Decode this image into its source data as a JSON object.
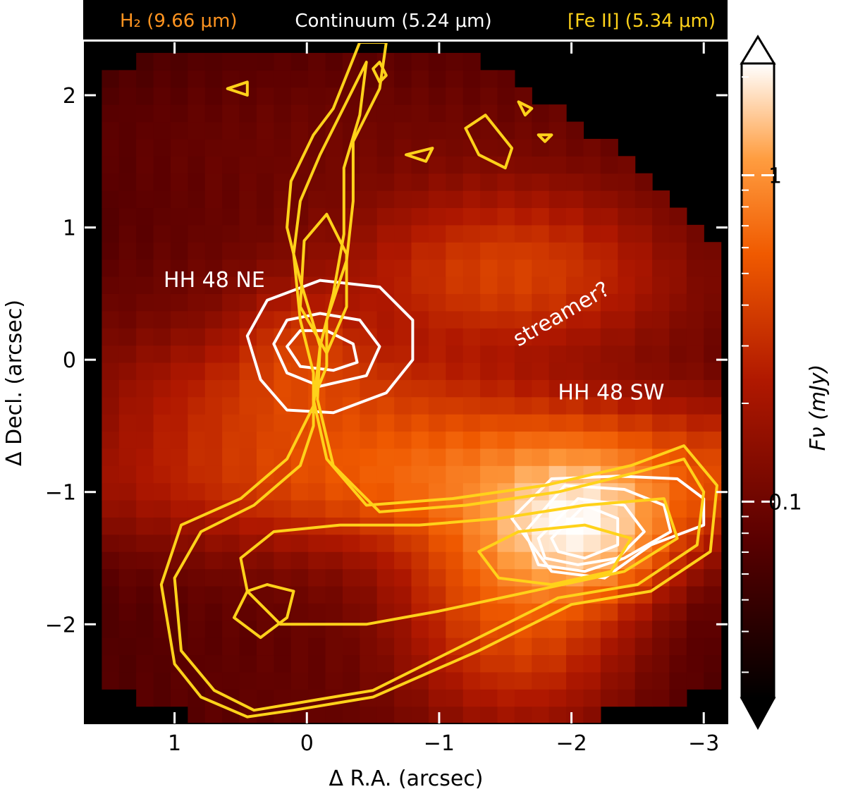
{
  "chart_data": {
    "type": "heatmap",
    "title": "",
    "header": {
      "items": [
        {
          "text": "H₂ (9.66 μm)",
          "color": "#ff9420"
        },
        {
          "text": "Continuum (5.24 μm)",
          "color": "#ffffff"
        },
        {
          "text": "[Fe II] (5.34 μm)",
          "color": "#ffd21a"
        }
      ],
      "background": "#000000"
    },
    "xlabel": "Δ R.A. (arcsec)",
    "ylabel": "Δ Decl. (arcsec)",
    "xlim": [
      1.68,
      -3.18
    ],
    "ylim": [
      -2.75,
      2.4
    ],
    "xticks": [
      1,
      0,
      -1,
      -2,
      -3
    ],
    "xtick_labels": [
      "1",
      "0",
      "−1",
      "−2",
      "−3"
    ],
    "yticks": [
      -2,
      -1,
      0,
      1,
      2
    ],
    "ytick_labels": [
      "−2",
      "−1",
      "0",
      "1",
      "2"
    ],
    "colorbar": {
      "label": "Fν (mJy)",
      "scale": "log",
      "range": [
        0.025,
        2.2
      ],
      "ticks": [
        0.1,
        1
      ],
      "tick_labels": [
        "0.1",
        "1"
      ],
      "colormap": "gist_heat",
      "extend": "both"
    },
    "annotations": [
      {
        "text": "HH 48 NE",
        "x": 0.7,
        "y": 0.55,
        "color": "#ffffff",
        "rotation": 0
      },
      {
        "text": "HH 48 SW",
        "x": -2.3,
        "y": -0.3,
        "color": "#ffffff",
        "rotation": 0
      },
      {
        "text": "streamer?",
        "x": -1.95,
        "y": 0.3,
        "color": "#ffffff",
        "rotation": -30
      }
    ],
    "image": {
      "pixel_size_arcsec": 0.13,
      "footprint_boundary": [
        [
          1.58,
          -2.25
        ],
        [
          1.6,
          2.1
        ],
        [
          1.25,
          2.3
        ],
        [
          0.7,
          2.35
        ],
        [
          -0.2,
          2.35
        ],
        [
          -0.8,
          2.3
        ],
        [
          -1.35,
          2.25
        ],
        [
          -1.75,
          2.0
        ],
        [
          -2.4,
          1.55
        ],
        [
          -2.8,
          1.1
        ],
        [
          -3.15,
          0.75
        ],
        [
          -3.18,
          -2.45
        ],
        [
          -2.8,
          -2.6
        ],
        [
          -1.8,
          -2.75
        ],
        [
          -0.6,
          -2.75
        ],
        [
          0.7,
          -2.75
        ],
        [
          1.2,
          -2.6
        ],
        [
          1.58,
          -2.45
        ]
      ],
      "emission_components": [
        {
          "name": "continuum-background",
          "amplitude": 0.09,
          "x": -0.8,
          "y": -0.2,
          "sigma_x": 2.4,
          "sigma_y": 2.4
        },
        {
          "name": "disk-lane",
          "amplitude": 0.55,
          "x": -1.6,
          "y": -0.85,
          "sigma_x": 1.6,
          "sigma_y": 0.32
        },
        {
          "name": "disk-ne-lane",
          "amplitude": 0.22,
          "x": 0.0,
          "y": -0.3,
          "sigma_x": 0.9,
          "sigma_y": 0.3
        },
        {
          "name": "hh48-sw-source",
          "amplitude": 1.5,
          "x": -2.05,
          "y": -1.25,
          "sigma_x": 0.38,
          "sigma_y": 0.3
        },
        {
          "name": "sw-extended",
          "amplitude": 0.5,
          "x": -1.6,
          "y": -1.7,
          "sigma_x": 0.5,
          "sigma_y": 0.55
        },
        {
          "name": "streamer",
          "amplitude": 0.3,
          "x": -1.55,
          "y": 0.7,
          "sigma_x": 0.7,
          "sigma_y": 0.35
        },
        {
          "name": "ne-knot",
          "amplitude": 0.18,
          "x": 0.05,
          "y": 0.1,
          "sigma_x": 0.3,
          "sigma_y": 0.3
        }
      ]
    },
    "contours": [
      {
        "name": "Continuum (5.24 μm)",
        "color": "#ffffff",
        "levels": [
          [
            [
              0.45,
              0.18
            ],
            [
              0.3,
              0.45
            ],
            [
              -0.1,
              0.6
            ],
            [
              -0.55,
              0.55
            ],
            [
              -0.8,
              0.3
            ],
            [
              -0.8,
              0.0
            ],
            [
              -0.6,
              -0.25
            ],
            [
              -0.2,
              -0.4
            ],
            [
              0.15,
              -0.38
            ],
            [
              0.35,
              -0.15
            ],
            [
              0.45,
              0.18
            ]
          ],
          [
            [
              0.25,
              0.12
            ],
            [
              0.15,
              0.3
            ],
            [
              -0.1,
              0.35
            ],
            [
              -0.4,
              0.3
            ],
            [
              -0.55,
              0.1
            ],
            [
              -0.45,
              -0.12
            ],
            [
              -0.1,
              -0.2
            ],
            [
              0.15,
              -0.1
            ],
            [
              0.25,
              0.12
            ]
          ],
          [
            [
              0.15,
              0.1
            ],
            [
              0.05,
              0.22
            ],
            [
              -0.15,
              0.22
            ],
            [
              -0.35,
              0.12
            ],
            [
              -0.38,
              -0.02
            ],
            [
              -0.2,
              -0.08
            ],
            [
              0.05,
              -0.05
            ],
            [
              0.15,
              0.1
            ]
          ],
          [
            [
              -1.55,
              -1.2
            ],
            [
              -1.85,
              -0.9
            ],
            [
              -2.35,
              -0.88
            ],
            [
              -2.8,
              -0.9
            ],
            [
              -3.0,
              -1.05
            ],
            [
              -3.0,
              -1.25
            ],
            [
              -2.6,
              -1.4
            ],
            [
              -2.25,
              -1.65
            ],
            [
              -1.85,
              -1.6
            ],
            [
              -1.55,
              -1.2
            ]
          ],
          [
            [
              -1.65,
              -1.3
            ],
            [
              -1.95,
              -0.95
            ],
            [
              -2.4,
              -0.98
            ],
            [
              -2.7,
              -1.1
            ],
            [
              -2.75,
              -1.3
            ],
            [
              -2.4,
              -1.5
            ],
            [
              -2.1,
              -1.6
            ],
            [
              -1.75,
              -1.55
            ],
            [
              -1.65,
              -1.3
            ]
          ],
          [
            [
              -1.75,
              -1.35
            ],
            [
              -2.05,
              -1.05
            ],
            [
              -2.4,
              -1.1
            ],
            [
              -2.55,
              -1.3
            ],
            [
              -2.35,
              -1.5
            ],
            [
              -2.05,
              -1.55
            ],
            [
              -1.8,
              -1.5
            ],
            [
              -1.75,
              -1.35
            ]
          ],
          [
            [
              -1.85,
              -1.35
            ],
            [
              -2.1,
              -1.1
            ],
            [
              -2.35,
              -1.2
            ],
            [
              -2.35,
              -1.4
            ],
            [
              -2.1,
              -1.5
            ],
            [
              -1.9,
              -1.45
            ],
            [
              -1.85,
              -1.35
            ]
          ]
        ]
      },
      {
        "name": "[Fe II] (5.34 μm)",
        "color": "#ffd21a",
        "levels": [
          [
            [
              0.8,
              -2.55
            ],
            [
              1.0,
              -2.3
            ],
            [
              1.1,
              -1.7
            ],
            [
              0.95,
              -1.25
            ],
            [
              0.5,
              -1.05
            ],
            [
              0.15,
              -0.75
            ],
            [
              -0.05,
              -0.35
            ],
            [
              -0.1,
              0.1
            ],
            [
              0.05,
              0.6
            ],
            [
              0.15,
              1.0
            ],
            [
              0.12,
              1.35
            ],
            [
              -0.05,
              1.7
            ],
            [
              -0.2,
              1.9
            ],
            [
              -0.4,
              2.4
            ],
            [
              -0.6,
              2.4
            ],
            [
              -0.55,
              2.05
            ],
            [
              -0.35,
              1.65
            ],
            [
              -0.35,
              1.2
            ],
            [
              -0.3,
              0.75
            ],
            [
              -0.15,
              0.3
            ],
            [
              -0.15,
              -0.05
            ],
            [
              -0.05,
              -0.3
            ],
            [
              -0.15,
              -0.75
            ],
            [
              -0.45,
              -1.1
            ],
            [
              -1.1,
              -1.05
            ],
            [
              -1.8,
              -0.95
            ],
            [
              -2.45,
              -0.8
            ],
            [
              -2.85,
              -0.65
            ],
            [
              -3.1,
              -0.95
            ],
            [
              -3.05,
              -1.45
            ],
            [
              -2.6,
              -1.75
            ],
            [
              -2.0,
              -1.85
            ],
            [
              -1.3,
              -2.2
            ],
            [
              -0.5,
              -2.55
            ],
            [
              0.1,
              -2.65
            ],
            [
              0.45,
              -2.7
            ],
            [
              0.8,
              -2.55
            ]
          ],
          [
            [
              0.7,
              -2.5
            ],
            [
              0.95,
              -2.2
            ],
            [
              1.0,
              -1.65
            ],
            [
              0.8,
              -1.3
            ],
            [
              0.4,
              -1.1
            ],
            [
              0.05,
              -0.8
            ],
            [
              -0.05,
              -0.5
            ],
            [
              -0.05,
              -0.1
            ],
            [
              0.05,
              0.3
            ],
            [
              0.1,
              0.8
            ],
            [
              0.05,
              1.2
            ],
            [
              -0.1,
              1.55
            ],
            [
              -0.3,
              1.95
            ],
            [
              -0.45,
              2.25
            ],
            [
              -0.4,
              1.85
            ],
            [
              -0.28,
              1.45
            ],
            [
              -0.28,
              0.95
            ],
            [
              -0.2,
              0.5
            ],
            [
              -0.1,
              0.1
            ],
            [
              -0.08,
              -0.3
            ],
            [
              -0.2,
              -0.8
            ],
            [
              -0.55,
              -1.15
            ],
            [
              -1.2,
              -1.1
            ],
            [
              -1.9,
              -1.0
            ],
            [
              -2.5,
              -0.85
            ],
            [
              -2.85,
              -0.75
            ],
            [
              -3.0,
              -1.0
            ],
            [
              -2.95,
              -1.4
            ],
            [
              -2.5,
              -1.7
            ],
            [
              -1.9,
              -1.8
            ],
            [
              -1.2,
              -2.15
            ],
            [
              -0.5,
              -2.5
            ],
            [
              0.1,
              -2.6
            ],
            [
              0.4,
              -2.65
            ],
            [
              0.7,
              -2.5
            ]
          ],
          [
            [
              0.2,
              -2.0
            ],
            [
              0.45,
              -1.75
            ],
            [
              0.5,
              -1.5
            ],
            [
              0.25,
              -1.3
            ],
            [
              -0.25,
              -1.25
            ],
            [
              -0.85,
              -1.25
            ],
            [
              -1.45,
              -1.2
            ],
            [
              -2.1,
              -1.1
            ],
            [
              -2.7,
              -1.05
            ],
            [
              -2.8,
              -1.35
            ],
            [
              -2.4,
              -1.6
            ],
            [
              -1.7,
              -1.75
            ],
            [
              -1.0,
              -1.9
            ],
            [
              -0.45,
              -2.0
            ],
            [
              0.2,
              -2.0
            ]
          ],
          [
            [
              0.45,
              -1.75
            ],
            [
              0.55,
              -1.95
            ],
            [
              0.35,
              -2.1
            ],
            [
              0.15,
              -1.95
            ],
            [
              0.1,
              -1.75
            ],
            [
              0.3,
              -1.7
            ],
            [
              0.45,
              -1.75
            ]
          ],
          [
            [
              -1.3,
              -1.45
            ],
            [
              -1.6,
              -1.3
            ],
            [
              -2.1,
              -1.25
            ],
            [
              -2.45,
              -1.35
            ],
            [
              -2.3,
              -1.6
            ],
            [
              -1.85,
              -1.7
            ],
            [
              -1.45,
              -1.65
            ],
            [
              -1.3,
              -1.45
            ]
          ],
          [
            [
              0.05,
              0.4
            ],
            [
              0.02,
              0.9
            ],
            [
              -0.15,
              1.1
            ],
            [
              -0.3,
              0.8
            ],
            [
              -0.3,
              0.4
            ],
            [
              -0.15,
              0.05
            ],
            [
              0.05,
              0.4
            ]
          ],
          [
            [
              -0.5,
              2.2
            ],
            [
              -0.55,
              2.1
            ],
            [
              -0.6,
              2.15
            ],
            [
              -0.55,
              2.25
            ],
            [
              -0.5,
              2.2
            ]
          ],
          [
            [
              -1.2,
              1.75
            ],
            [
              -1.35,
              1.85
            ],
            [
              -1.55,
              1.6
            ],
            [
              -1.5,
              1.45
            ],
            [
              -1.3,
              1.55
            ],
            [
              -1.2,
              1.75
            ]
          ],
          [
            [
              -0.75,
              1.55
            ],
            [
              -0.95,
              1.6
            ],
            [
              -0.9,
              1.5
            ],
            [
              -0.75,
              1.55
            ]
          ],
          [
            [
              0.6,
              2.05
            ],
            [
              0.45,
              2.1
            ],
            [
              0.45,
              2.0
            ],
            [
              0.6,
              2.05
            ]
          ],
          [
            [
              -1.6,
              1.95
            ],
            [
              -1.65,
              1.85
            ],
            [
              -1.7,
              1.9
            ],
            [
              -1.6,
              1.95
            ]
          ],
          [
            [
              -1.75,
              1.7
            ],
            [
              -1.8,
              1.65
            ],
            [
              -1.85,
              1.7
            ],
            [
              -1.75,
              1.7
            ]
          ]
        ]
      }
    ]
  }
}
